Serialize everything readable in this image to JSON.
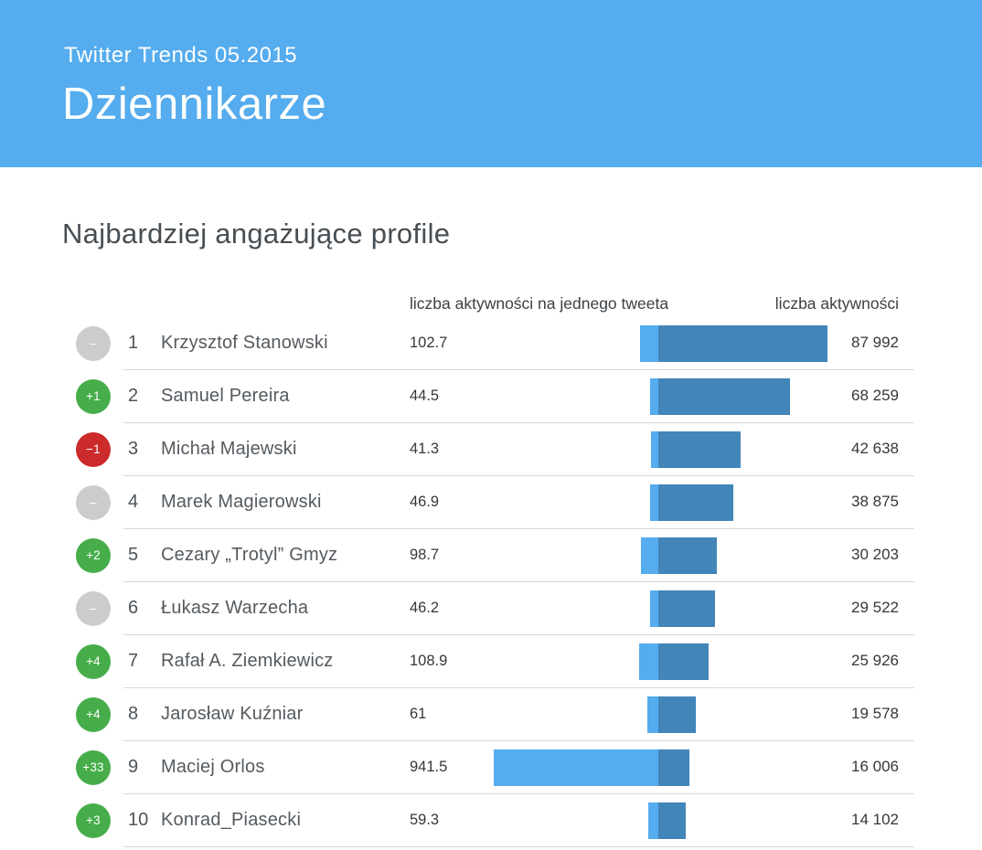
{
  "header": {
    "subtitle": "Twitter Trends 05.2015",
    "title": "Dziennikarze"
  },
  "section": {
    "title": "Najbardziej angażujące profile"
  },
  "table": {
    "col_per_tweet": "liczba aktywności na jednego tweeta",
    "col_total": "liczba aktywności"
  },
  "colors": {
    "banner": "#55acee",
    "bar_light": "#55acee",
    "bar_dark": "#4285b8",
    "badge_up": "#46ad4a",
    "badge_down": "#cc2b2b",
    "badge_neutral": "#cccccc"
  },
  "chart_data": {
    "type": "bar",
    "orientation": "horizontal",
    "title": "Najbardziej angażujące profile",
    "legend": [
      "liczba aktywności na jednego tweeta",
      "liczba aktywności"
    ],
    "categories": [
      "Krzysztof Stanowski",
      "Samuel Pereira",
      "Michał Majewski",
      "Marek Magierowski",
      "Cezary „Trotyl” Gmyz",
      "Łukasz Warzecha",
      "Rafał A. Ziemkiewicz",
      "Jarosław Kuźniar",
      "Maciej Orlos",
      "Konrad_Piasecki"
    ],
    "series": [
      {
        "name": "liczba aktywności na jednego tweeta",
        "values": [
          102.7,
          44.5,
          41.3,
          46.9,
          98.7,
          46.2,
          108.9,
          61,
          941.5,
          59.3
        ]
      },
      {
        "name": "liczba aktywności",
        "values": [
          87992,
          68259,
          42638,
          38875,
          30203,
          29522,
          25926,
          19578,
          16006,
          14102
        ]
      }
    ],
    "rows": [
      {
        "rank": 1,
        "change": "–",
        "name": "Krzysztof Stanowski",
        "per_tweet": 102.7,
        "total": 87992
      },
      {
        "rank": 2,
        "change": "+1",
        "name": "Samuel Pereira",
        "per_tweet": 44.5,
        "total": 68259
      },
      {
        "rank": 3,
        "change": "−1",
        "name": "Michał Majewski",
        "per_tweet": 41.3,
        "total": 42638
      },
      {
        "rank": 4,
        "change": "–",
        "name": "Marek Magierowski",
        "per_tweet": 46.9,
        "total": 38875
      },
      {
        "rank": 5,
        "change": "+2",
        "name": "Cezary „Trotyl” Gmyz",
        "per_tweet": 98.7,
        "total": 30203
      },
      {
        "rank": 6,
        "change": "–",
        "name": "Łukasz Warzecha",
        "per_tweet": 46.2,
        "total": 29522
      },
      {
        "rank": 7,
        "change": "+4",
        "name": "Rafał A. Ziemkiewicz",
        "per_tweet": 108.9,
        "total": 25926
      },
      {
        "rank": 8,
        "change": "+4",
        "name": "Jarosław Kuźniar",
        "per_tweet": 61,
        "total": 19578
      },
      {
        "rank": 9,
        "change": "+33",
        "name": "Maciej Orlos",
        "per_tweet": 941.5,
        "total": 16006
      },
      {
        "rank": 10,
        "change": "+3",
        "name": "Konrad_Piasecki",
        "per_tweet": 59.3,
        "total": 14102
      }
    ]
  }
}
